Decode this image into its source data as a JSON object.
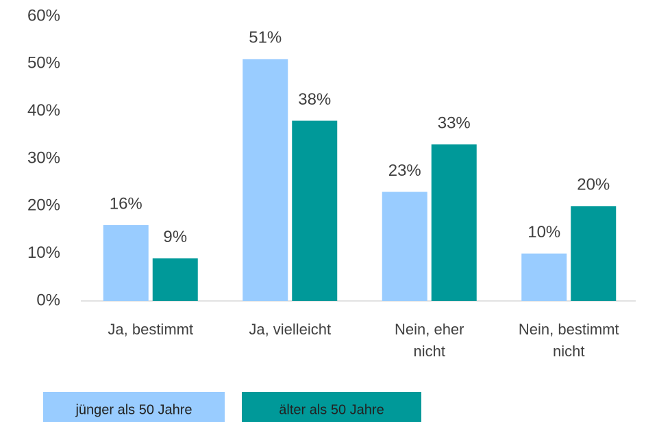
{
  "chart_data": {
    "type": "bar",
    "categories": [
      "Ja, bestimmt",
      "Ja, vielleicht",
      "Nein, eher nicht",
      "Nein, bestimmt nicht"
    ],
    "series": [
      {
        "name": "jünger als 50 Jahre",
        "color": "#99ccff",
        "values": [
          16,
          51,
          23,
          10
        ],
        "value_labels": [
          "16%",
          "51%",
          "23%",
          "10%"
        ]
      },
      {
        "name": "älter als 50 Jahre",
        "color": "#009999",
        "values": [
          9,
          38,
          33,
          20
        ],
        "value_labels": [
          "9%",
          "38%",
          "33%",
          "20%"
        ]
      }
    ],
    "ylim": [
      0,
      60
    ],
    "yticks": [
      {
        "value": 0,
        "label": "0%"
      },
      {
        "value": 10,
        "label": "10%"
      },
      {
        "value": 20,
        "label": "20%"
      },
      {
        "value": 30,
        "label": "30%"
      },
      {
        "value": 40,
        "label": "40%"
      },
      {
        "value": 50,
        "label": "50%"
      },
      {
        "value": 60,
        "label": "60%"
      }
    ],
    "grid": false,
    "legend": "bottom"
  }
}
